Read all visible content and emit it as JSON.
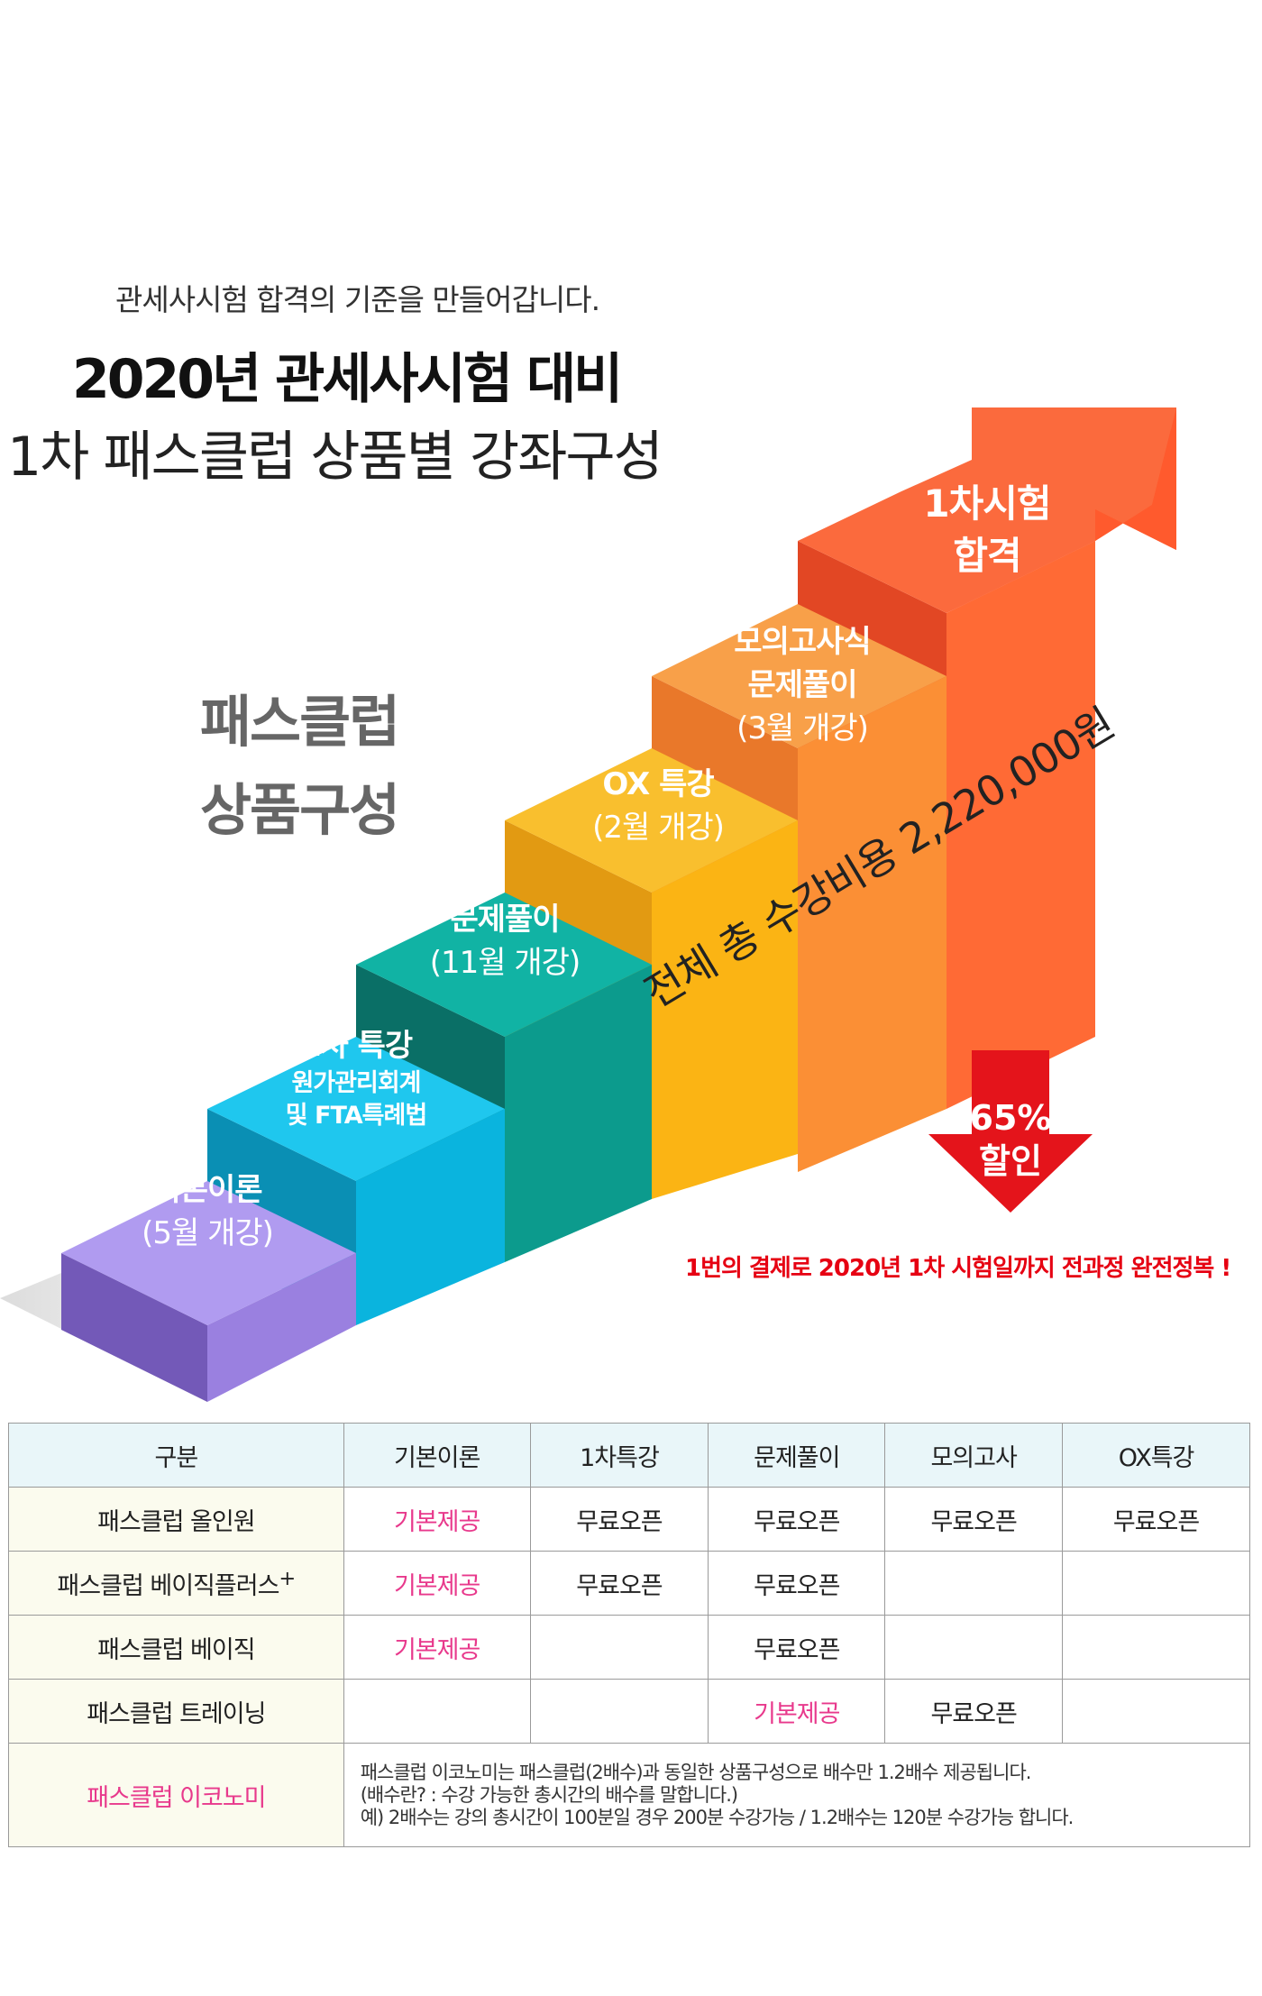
{
  "header": {
    "subtitle": "관세사시험 합격의 기준을 만들어갑니다.",
    "title_line1": "2020년 관세사시험 대비",
    "title_line2": "1차 패스클럽 상품별 강좌구성",
    "package_line1": "패스클럽",
    "package_line2": "상품구성"
  },
  "steps": [
    {
      "name": "기본이론",
      "sub": "(5월 개강)",
      "color": "#a991e8"
    },
    {
      "name": "1차 특강",
      "sub1": "원가관리회계",
      "sub2": "및 FTA특례법",
      "color": "#14bde3"
    },
    {
      "name": "문제풀이",
      "sub": "(11월 개강)",
      "color": "#0ba99b"
    },
    {
      "name": "OX 특강",
      "sub": "(2월 개강)",
      "color": "#f6b21a"
    },
    {
      "name1": "모의고사식",
      "name2": "문제풀이",
      "sub": "(3월 개강)",
      "color": "#f59a3b"
    },
    {
      "name1": "1차시험",
      "name2": "합격",
      "color": "#fb5f3a"
    }
  ],
  "pricing": {
    "total_cost": "전체 총 수강비용 2,220,000원",
    "discount_pct": "65%",
    "discount_word": "할인",
    "notice": "1번의 결제로 2020년 1차 시험일까지 전과정 완전정복 !"
  },
  "table": {
    "headers": [
      "구분",
      "기본이론",
      "1차특강",
      "문제풀이",
      "모의고사",
      "OX특강"
    ],
    "rows": [
      [
        "패스클럽 올인원",
        "기본제공",
        "무료오픈",
        "무료오픈",
        "무료오픈",
        "무료오픈"
      ],
      [
        "패스클럽 베이직플러스",
        "기본제공",
        "무료오픈",
        "무료오픈",
        "",
        ""
      ],
      [
        "패스클럽 베이직",
        "기본제공",
        "",
        "무료오픈",
        "",
        ""
      ],
      [
        "패스클럽 트레이닝",
        "",
        "",
        "기본제공",
        "무료오픈",
        ""
      ]
    ],
    "row2_superscript": "+",
    "economy_label": "패스클럽 이코노미",
    "economy_note1": "패스클럽 이코노미는 패스클럽(2배수)과 동일한 상품구성으로 배수만 1.2배수 제공됩니다.",
    "economy_note2": "(배수란? : 수강 가능한 총시간의 배수를 말합니다.)",
    "economy_note3": "예) 2배수는 강의 총시간이 100분일 경우  200분 수강가능 / 1.2배수는 120분 수강가능 합니다."
  }
}
